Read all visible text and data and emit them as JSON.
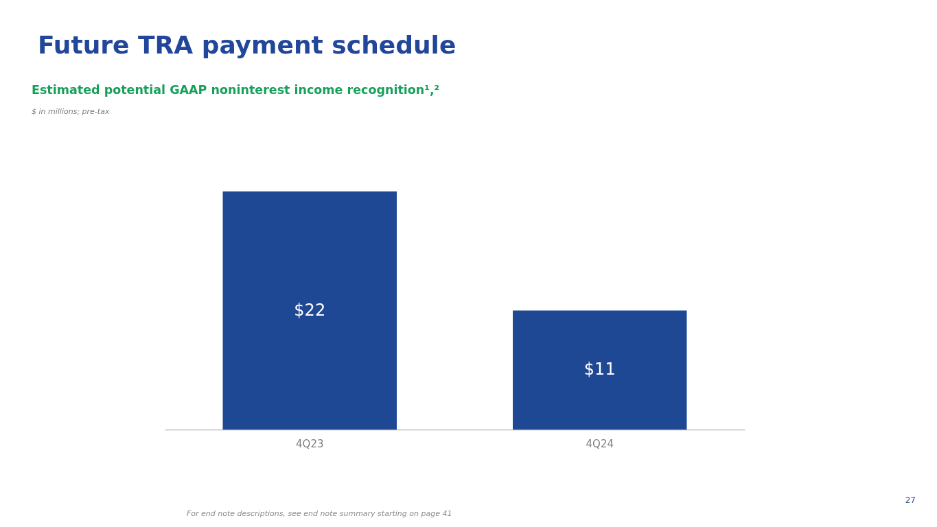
{
  "chart_data": {
    "type": "bar",
    "title": "Future TRA payment schedule",
    "subtitle": "Estimated potential GAAP noninterest income recognition¹,²",
    "annotations": [
      "$ in millions; pre-tax",
      "For end note descriptions, see end note summary starting on page 41",
      "27"
    ],
    "categories": [
      "4Q23",
      "4Q24"
    ],
    "values": [
      22,
      11
    ],
    "color": "#1e4894",
    "value_labels": [
      "$22",
      "$11"
    ],
    "tick_labels": "x"
  }
}
